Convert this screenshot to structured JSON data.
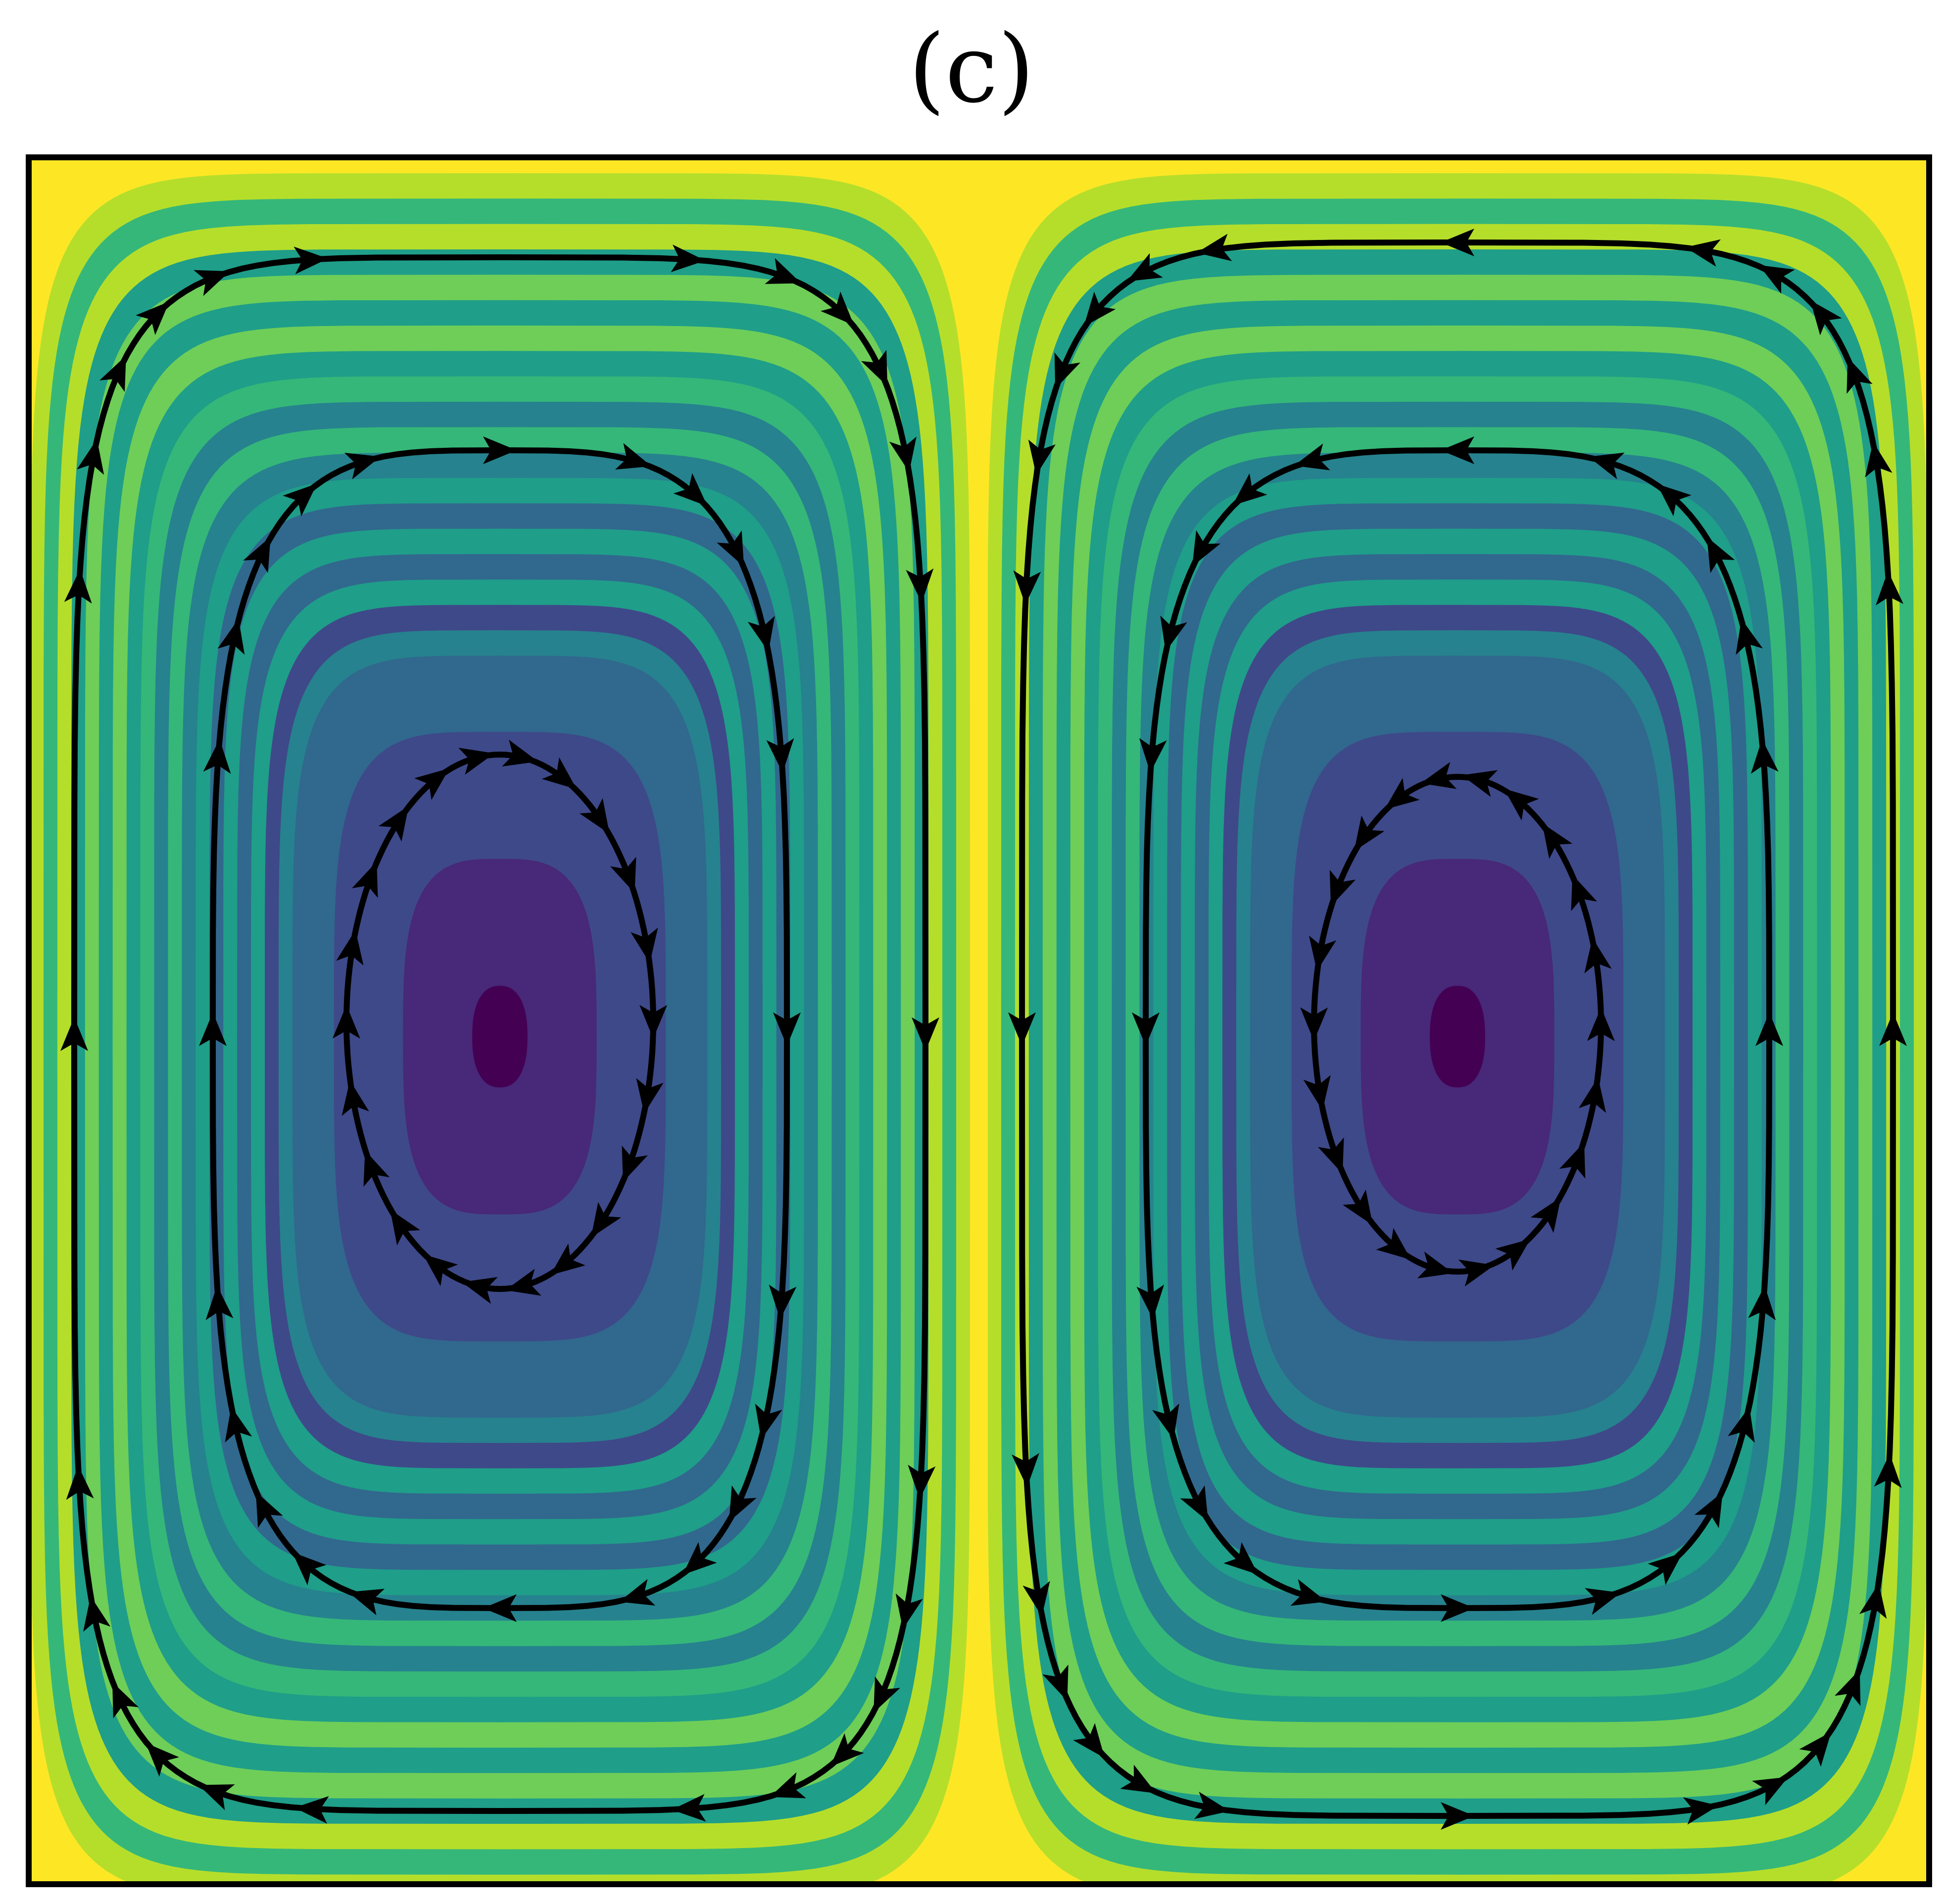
{
  "figure": {
    "panel_label": "(c)"
  },
  "colormap": {
    "name": "viridis",
    "stops": [
      "#440154",
      "#482878",
      "#3e4989",
      "#31688e",
      "#26828e",
      "#1f9e89",
      "#35b779",
      "#6ece58",
      "#b5de2b",
      "#fde725"
    ]
  },
  "colors": {
    "frame": "#000000",
    "streamline": "#000000",
    "background": "#ffffff"
  },
  "flow": {
    "cells": [
      {
        "name": "left-vortex",
        "rotation": "clockwise",
        "streamline_count": 3,
        "arrows_per_streamline": [
          22,
          24,
          26
        ]
      },
      {
        "name": "right-vortex",
        "rotation": "counterclockwise",
        "streamline_count": 3,
        "arrows_per_streamline": [
          22,
          24,
          28
        ]
      }
    ]
  }
}
